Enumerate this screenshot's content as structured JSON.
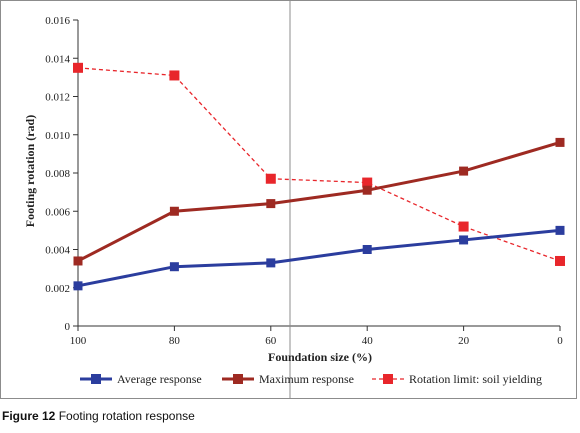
{
  "chart_data": {
    "type": "line",
    "title": "",
    "xlabel": "Foundation size (%)",
    "ylabel": "Footing rotation (rad)",
    "categories": [
      "100",
      "80",
      "60",
      "40",
      "20",
      "0"
    ],
    "x": [
      100,
      80,
      60,
      40,
      20,
      0
    ],
    "xlim": [
      100,
      0
    ],
    "ylim": [
      0,
      0.016
    ],
    "y_ticks": [
      "0",
      "0.002",
      "0.004",
      "0.006",
      "0.008",
      "0.010",
      "0.012",
      "0.014",
      "0.016"
    ],
    "grid": false,
    "legend_position": "bottom",
    "series": [
      {
        "name": "Average response",
        "values": [
          0.0021,
          0.0031,
          0.0033,
          0.004,
          0.0045,
          0.005
        ],
        "color": "#2b3d9e",
        "line_style": "solid",
        "marker": "square"
      },
      {
        "name": "Maximum response",
        "values": [
          0.0034,
          0.006,
          0.0064,
          0.0071,
          0.0081,
          0.0096
        ],
        "color": "#9e2a22",
        "line_style": "solid",
        "marker": "square"
      },
      {
        "name": "Rotation limit: soil yielding",
        "values": [
          0.0135,
          0.0131,
          0.0077,
          0.0075,
          0.0052,
          0.0034
        ],
        "color": "#e8262b",
        "line_style": "dashed",
        "marker": "square"
      }
    ]
  },
  "caption": {
    "label": "Figure 12",
    "text": "Footing rotation response"
  }
}
